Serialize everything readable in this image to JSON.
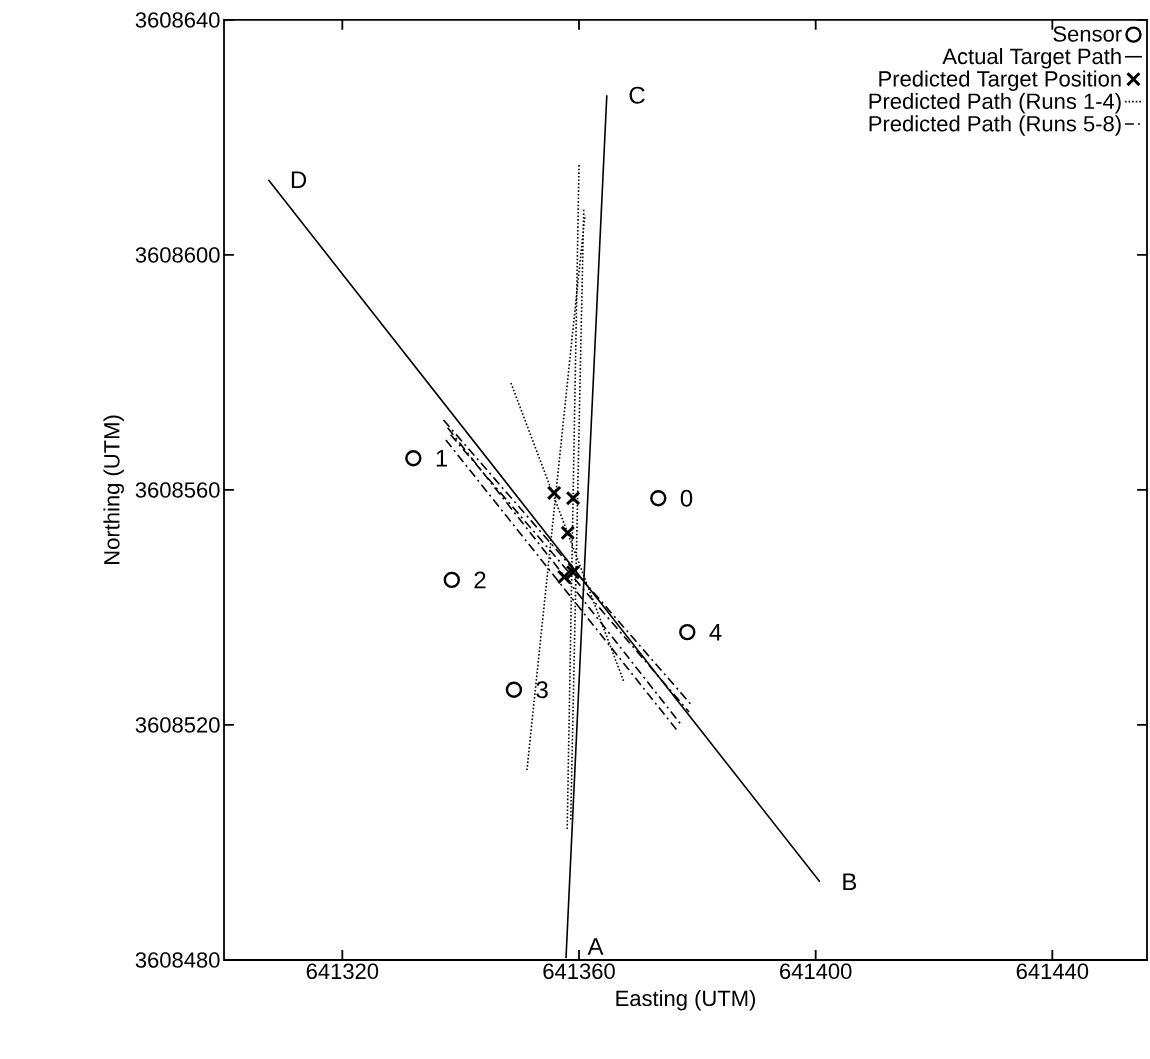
{
  "chart_data": {
    "type": "line",
    "xlabel": "Easting (UTM)",
    "ylabel": "Northing (UTM)",
    "xlim": [
      641300,
      641456
    ],
    "ylim": [
      3608480,
      3608640
    ],
    "xticks": [
      641320,
      641360,
      641400,
      641440
    ],
    "yticks": [
      3608480,
      3608520,
      3608560,
      3608600,
      3608640
    ],
    "grid": false,
    "legend": "top right",
    "series": [
      {
        "name": "Sensor",
        "type": "scatter",
        "marker": "circle",
        "color": "#000000",
        "x": [
          641373.4,
          641332,
          641338.5,
          641349,
          641378.3
        ],
        "values": [
          3608558.6,
          3608565.4,
          3608544.7,
          3608526,
          3608535.8
        ]
      },
      {
        "name": "Actual Target Path",
        "line_style": "solid",
        "color": "#000000",
        "x": [
          641357.8,
          641364.7,
          null,
          641307.5,
          641400.7
        ],
        "values": [
          3608480.3,
          3608627.2,
          null,
          3608612.8,
          3608493.3
        ]
      },
      {
        "name": "Predicted Target Position",
        "type": "scatter",
        "marker": "cross",
        "color": "#000000",
        "x": [
          641355.8,
          641359.0,
          641358.1,
          641357.5,
          641359.0
        ],
        "values": [
          3608559.5,
          3608558.6,
          3608552.7,
          3608545.2,
          3608546.0
        ]
      },
      {
        "name": "Predicted Path (Runs 1-4)",
        "line_style": "dotted",
        "color": "#000000",
        "x": [
          641360.0,
          641358.0,
          null,
          641348.5,
          641367.6,
          null,
          641351.2,
          641361.0,
          null,
          641360.8,
          641358.6
        ],
        "values": [
          3608615.3,
          3608502.1,
          null,
          3608578.2,
          3608527.3,
          null,
          3608512.3,
          3608606.8,
          null,
          3608607.7,
          3608503.8
        ]
      },
      {
        "name": "Predicted Path (Runs 5-8)",
        "line_style": "dashdot",
        "color": "#000000",
        "x": [
          641337.1,
          641379.0,
          null,
          641337.8,
          641377.3,
          null,
          641337.5,
          641376.8,
          null,
          641338.3,
          641378.6
        ],
        "values": [
          3608571.9,
          3608523.4,
          null,
          3608570.6,
          3608520.0,
          null,
          3608568.5,
          3608518.8,
          null,
          3608569.4,
          3608522.2
        ]
      }
    ],
    "annotations": [
      {
        "text": "0",
        "x": 641373.4,
        "y": 3608558.6
      },
      {
        "text": "1",
        "x": 641332,
        "y": 3608565.4
      },
      {
        "text": "2",
        "x": 641338.5,
        "y": 3608544.7
      },
      {
        "text": "3",
        "x": 641349,
        "y": 3608526
      },
      {
        "text": "4",
        "x": 641378.3,
        "y": 3608535.8
      },
      {
        "text": "A",
        "x": 641357.8,
        "y": 3608480.3
      },
      {
        "text": "B",
        "x": 641400.7,
        "y": 3608493.3
      },
      {
        "text": "C",
        "x": 641364.7,
        "y": 3608627.2
      },
      {
        "text": "D",
        "x": 641307.5,
        "y": 3608612.8
      }
    ]
  }
}
